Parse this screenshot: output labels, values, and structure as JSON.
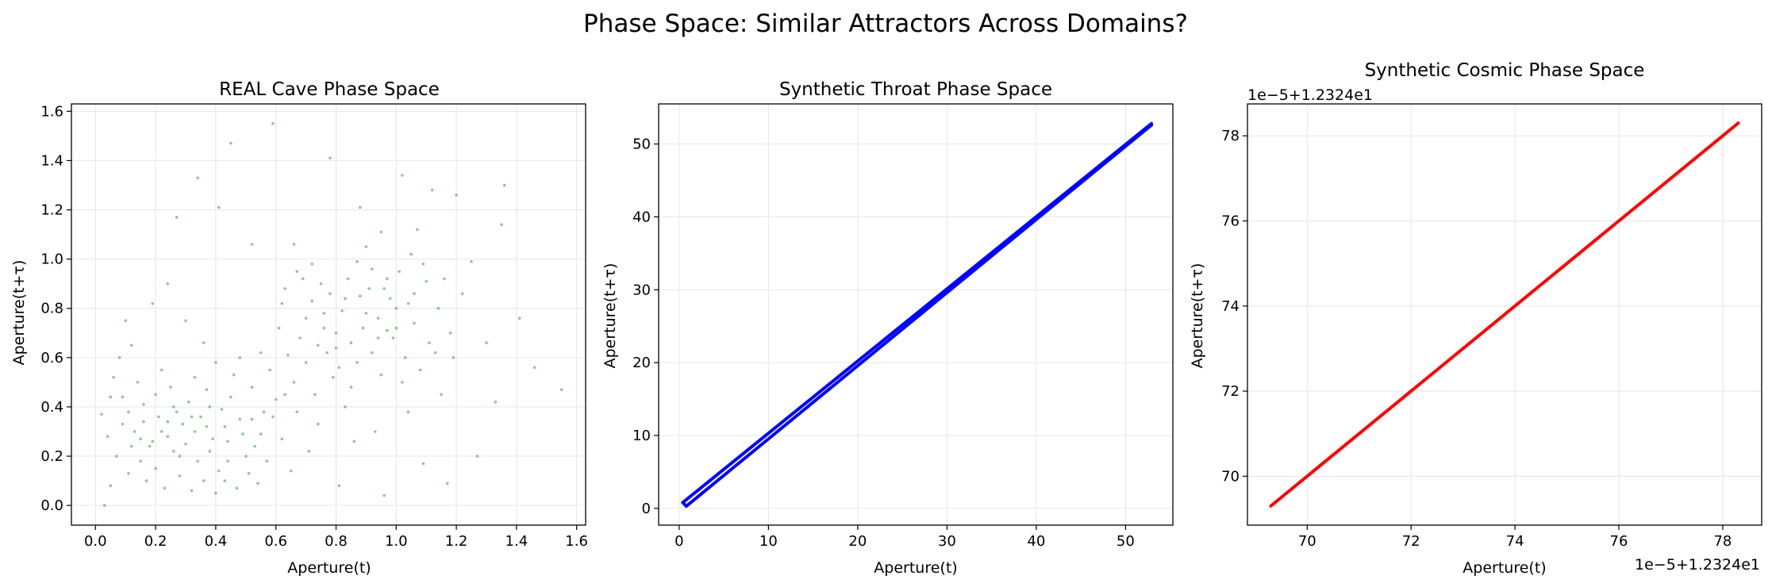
{
  "suptitle": "Phase Space: Similar Attractors Across Domains?",
  "chart_data": [
    {
      "type": "scatter",
      "title": "REAL Cave Phase Space",
      "xlabel": "Aperture(t)",
      "ylabel": "Aperture(t+τ)",
      "xlim": [
        -0.08,
        1.63
      ],
      "ylim": [
        -0.08,
        1.63
      ],
      "xticks": [
        0.0,
        0.2,
        0.4,
        0.6,
        0.8,
        1.0,
        1.2,
        1.4,
        1.6
      ],
      "yticks": [
        0.0,
        0.2,
        0.4,
        0.6,
        0.8,
        1.0,
        1.2,
        1.4,
        1.6
      ],
      "xtick_labels": [
        "0.0",
        "0.2",
        "0.4",
        "0.6",
        "0.8",
        "1.0",
        "1.2",
        "1.4",
        "1.6"
      ],
      "ytick_labels": [
        "0.0",
        "0.2",
        "0.4",
        "0.6",
        "0.8",
        "1.0",
        "1.2",
        "1.4",
        "1.6"
      ],
      "grid": true,
      "color": "#2ca02c",
      "points": [
        [
          0.59,
          1.55
        ],
        [
          0.45,
          1.47
        ],
        [
          0.78,
          1.41
        ],
        [
          0.34,
          1.33
        ],
        [
          1.36,
          1.3
        ],
        [
          1.02,
          1.34
        ],
        [
          0.41,
          1.21
        ],
        [
          0.27,
          1.17
        ],
        [
          0.88,
          1.21
        ],
        [
          1.12,
          1.28
        ],
        [
          1.2,
          1.26
        ],
        [
          1.35,
          1.14
        ],
        [
          0.66,
          1.06
        ],
        [
          0.52,
          1.06
        ],
        [
          0.95,
          1.11
        ],
        [
          1.07,
          1.12
        ],
        [
          1.41,
          0.76
        ],
        [
          1.46,
          0.56
        ],
        [
          1.55,
          0.47
        ],
        [
          1.27,
          0.2
        ],
        [
          1.17,
          0.09
        ],
        [
          1.09,
          0.17
        ],
        [
          0.96,
          0.04
        ],
        [
          0.81,
          0.08
        ],
        [
          0.03,
          0.0
        ],
        [
          0.05,
          0.08
        ],
        [
          0.09,
          0.33
        ],
        [
          0.12,
          0.65
        ],
        [
          0.19,
          0.82
        ],
        [
          0.24,
          0.9
        ],
        [
          0.3,
          0.75
        ],
        [
          0.22,
          0.55
        ],
        [
          0.16,
          0.41
        ],
        [
          0.27,
          0.38
        ],
        [
          0.33,
          0.3
        ],
        [
          0.38,
          0.22
        ],
        [
          0.44,
          0.18
        ],
        [
          0.48,
          0.35
        ],
        [
          0.52,
          0.48
        ],
        [
          0.55,
          0.62
        ],
        [
          0.61,
          0.72
        ],
        [
          0.63,
          0.88
        ],
        [
          0.67,
          0.95
        ],
        [
          0.72,
          0.83
        ],
        [
          0.76,
          0.78
        ],
        [
          0.8,
          0.7
        ],
        [
          0.84,
          0.92
        ],
        [
          0.87,
          0.99
        ],
        [
          0.91,
          0.88
        ],
        [
          0.94,
          0.76
        ],
        [
          0.98,
          0.84
        ],
        [
          1.01,
          0.95
        ],
        [
          1.05,
          1.02
        ],
        [
          1.1,
          0.91
        ],
        [
          1.14,
          0.8
        ],
        [
          1.18,
          0.7
        ],
        [
          1.22,
          0.86
        ],
        [
          1.25,
          0.99
        ],
        [
          1.3,
          0.66
        ],
        [
          1.33,
          0.42
        ],
        [
          0.13,
          0.3
        ],
        [
          0.15,
          0.18
        ],
        [
          0.18,
          0.24
        ],
        [
          0.21,
          0.36
        ],
        [
          0.24,
          0.28
        ],
        [
          0.26,
          0.22
        ],
        [
          0.29,
          0.33
        ],
        [
          0.31,
          0.42
        ],
        [
          0.35,
          0.36
        ],
        [
          0.37,
          0.47
        ],
        [
          0.39,
          0.27
        ],
        [
          0.42,
          0.39
        ],
        [
          0.46,
          0.53
        ],
        [
          0.49,
          0.29
        ],
        [
          0.51,
          0.13
        ],
        [
          0.53,
          0.24
        ],
        [
          0.56,
          0.38
        ],
        [
          0.58,
          0.55
        ],
        [
          0.6,
          0.43
        ],
        [
          0.62,
          0.27
        ],
        [
          0.64,
          0.61
        ],
        [
          0.66,
          0.5
        ],
        [
          0.68,
          0.68
        ],
        [
          0.7,
          0.58
        ],
        [
          0.73,
          0.45
        ],
        [
          0.75,
          0.9
        ],
        [
          0.77,
          0.62
        ],
        [
          0.79,
          0.52
        ],
        [
          0.82,
          0.79
        ],
        [
          0.85,
          0.66
        ],
        [
          0.88,
          0.85
        ],
        [
          0.9,
          1.05
        ],
        [
          0.92,
          0.62
        ],
        [
          0.95,
          0.53
        ],
        [
          0.97,
          0.71
        ],
        [
          1.0,
          0.8
        ],
        [
          1.03,
          0.6
        ],
        [
          1.06,
          0.74
        ],
        [
          1.08,
          0.55
        ],
        [
          1.11,
          0.66
        ],
        [
          1.15,
          0.45
        ],
        [
          1.19,
          0.6
        ],
        [
          0.07,
          0.2
        ],
        [
          0.09,
          0.44
        ],
        [
          0.11,
          0.13
        ],
        [
          0.14,
          0.5
        ],
        [
          0.17,
          0.1
        ],
        [
          0.2,
          0.15
        ],
        [
          0.23,
          0.07
        ],
        [
          0.25,
          0.48
        ],
        [
          0.28,
          0.12
        ],
        [
          0.32,
          0.06
        ],
        [
          0.36,
          0.1
        ],
        [
          0.4,
          0.05
        ],
        [
          0.43,
          0.1
        ],
        [
          0.47,
          0.07
        ],
        [
          0.5,
          0.2
        ],
        [
          0.54,
          0.09
        ],
        [
          0.57,
          0.18
        ],
        [
          0.65,
          0.14
        ],
        [
          0.71,
          0.22
        ],
        [
          0.74,
          0.33
        ],
        [
          0.83,
          0.4
        ],
        [
          0.86,
          0.26
        ],
        [
          0.93,
          0.3
        ],
        [
          1.04,
          0.38
        ],
        [
          0.02,
          0.37
        ],
        [
          0.04,
          0.28
        ],
        [
          0.06,
          0.52
        ],
        [
          0.08,
          0.6
        ],
        [
          0.1,
          0.75
        ],
        [
          0.12,
          0.24
        ],
        [
          0.16,
          0.34
        ],
        [
          0.2,
          0.45
        ],
        [
          0.22,
          0.3
        ],
        [
          0.26,
          0.4
        ],
        [
          0.3,
          0.25
        ],
        [
          0.33,
          0.52
        ],
        [
          0.36,
          0.66
        ],
        [
          0.4,
          0.58
        ],
        [
          0.43,
          0.32
        ],
        [
          0.45,
          0.44
        ],
        [
          0.48,
          0.6
        ],
        [
          0.52,
          0.35
        ],
        [
          0.55,
          0.29
        ],
        [
          0.59,
          0.36
        ],
        [
          0.63,
          0.45
        ],
        [
          0.67,
          0.38
        ],
        [
          0.7,
          0.76
        ],
        [
          0.74,
          0.65
        ],
        [
          0.78,
          0.86
        ],
        [
          0.81,
          0.56
        ],
        [
          0.85,
          0.48
        ],
        [
          0.89,
          0.72
        ],
        [
          0.92,
          0.96
        ],
        [
          0.96,
          0.88
        ],
        [
          0.99,
          0.68
        ],
        [
          1.02,
          0.5
        ],
        [
          1.06,
          0.86
        ],
        [
          1.09,
          0.98
        ],
        [
          1.13,
          0.62
        ],
        [
          1.16,
          0.92
        ],
        [
          0.34,
          0.18
        ],
        [
          0.37,
          0.32
        ],
        [
          0.41,
          0.14
        ],
        [
          0.44,
          0.26
        ],
        [
          0.38,
          0.4
        ],
        [
          0.32,
          0.36
        ],
        [
          0.28,
          0.2
        ],
        [
          0.24,
          0.34
        ],
        [
          0.19,
          0.26
        ],
        [
          0.15,
          0.27
        ],
        [
          0.11,
          0.38
        ],
        [
          0.05,
          0.44
        ],
        [
          0.62,
          0.82
        ],
        [
          0.69,
          0.92
        ],
        [
          0.72,
          0.98
        ],
        [
          0.76,
          0.72
        ],
        [
          0.8,
          0.64
        ],
        [
          0.83,
          0.84
        ],
        [
          0.87,
          0.58
        ],
        [
          0.9,
          0.78
        ],
        [
          0.94,
          0.68
        ],
        [
          0.97,
          0.92
        ],
        [
          1.0,
          0.72
        ],
        [
          1.04,
          0.82
        ]
      ]
    },
    {
      "type": "line",
      "title": "Synthetic Throat Phase Space",
      "xlabel": "Aperture(t)",
      "ylabel": "Aperture(t+τ)",
      "xlim": [
        -2.3,
        55.3
      ],
      "ylim": [
        -2.3,
        55.5
      ],
      "xticks": [
        0,
        10,
        20,
        30,
        40,
        50
      ],
      "yticks": [
        0,
        10,
        20,
        30,
        40,
        50
      ],
      "xtick_labels": [
        "0",
        "10",
        "20",
        "30",
        "40",
        "50"
      ],
      "ytick_labels": [
        "0",
        "10",
        "20",
        "30",
        "40",
        "50"
      ],
      "grid": true,
      "color": "#0000ff",
      "series": [
        {
          "x": [
            0.4,
            52.9
          ],
          "y": [
            0.8,
            52.8
          ]
        },
        {
          "x": [
            0.8,
            52.9
          ],
          "y": [
            0.3,
            52.6
          ]
        },
        {
          "x": [
            0.4,
            0.8
          ],
          "y": [
            0.8,
            0.3
          ]
        }
      ]
    },
    {
      "type": "line",
      "title": "Synthetic Cosmic Phase Space",
      "xlabel": "Aperture(t)",
      "ylabel": "Aperture(t+τ)",
      "x_offset_label": "1e−5+1.2324e1",
      "y_offset_label": "1e−5+1.2324e1",
      "xlim": [
        68.85,
        78.75
      ],
      "ylim": [
        68.85,
        78.75
      ],
      "xticks": [
        70,
        72,
        74,
        76,
        78
      ],
      "yticks": [
        70,
        72,
        74,
        76,
        78
      ],
      "xtick_labels": [
        "70",
        "72",
        "74",
        "76",
        "78"
      ],
      "ytick_labels": [
        "70",
        "72",
        "74",
        "76",
        "78"
      ],
      "grid": true,
      "color": "#ff0000",
      "series": [
        {
          "x": [
            69.3,
            78.3
          ],
          "y": [
            69.3,
            78.3
          ]
        }
      ]
    }
  ]
}
